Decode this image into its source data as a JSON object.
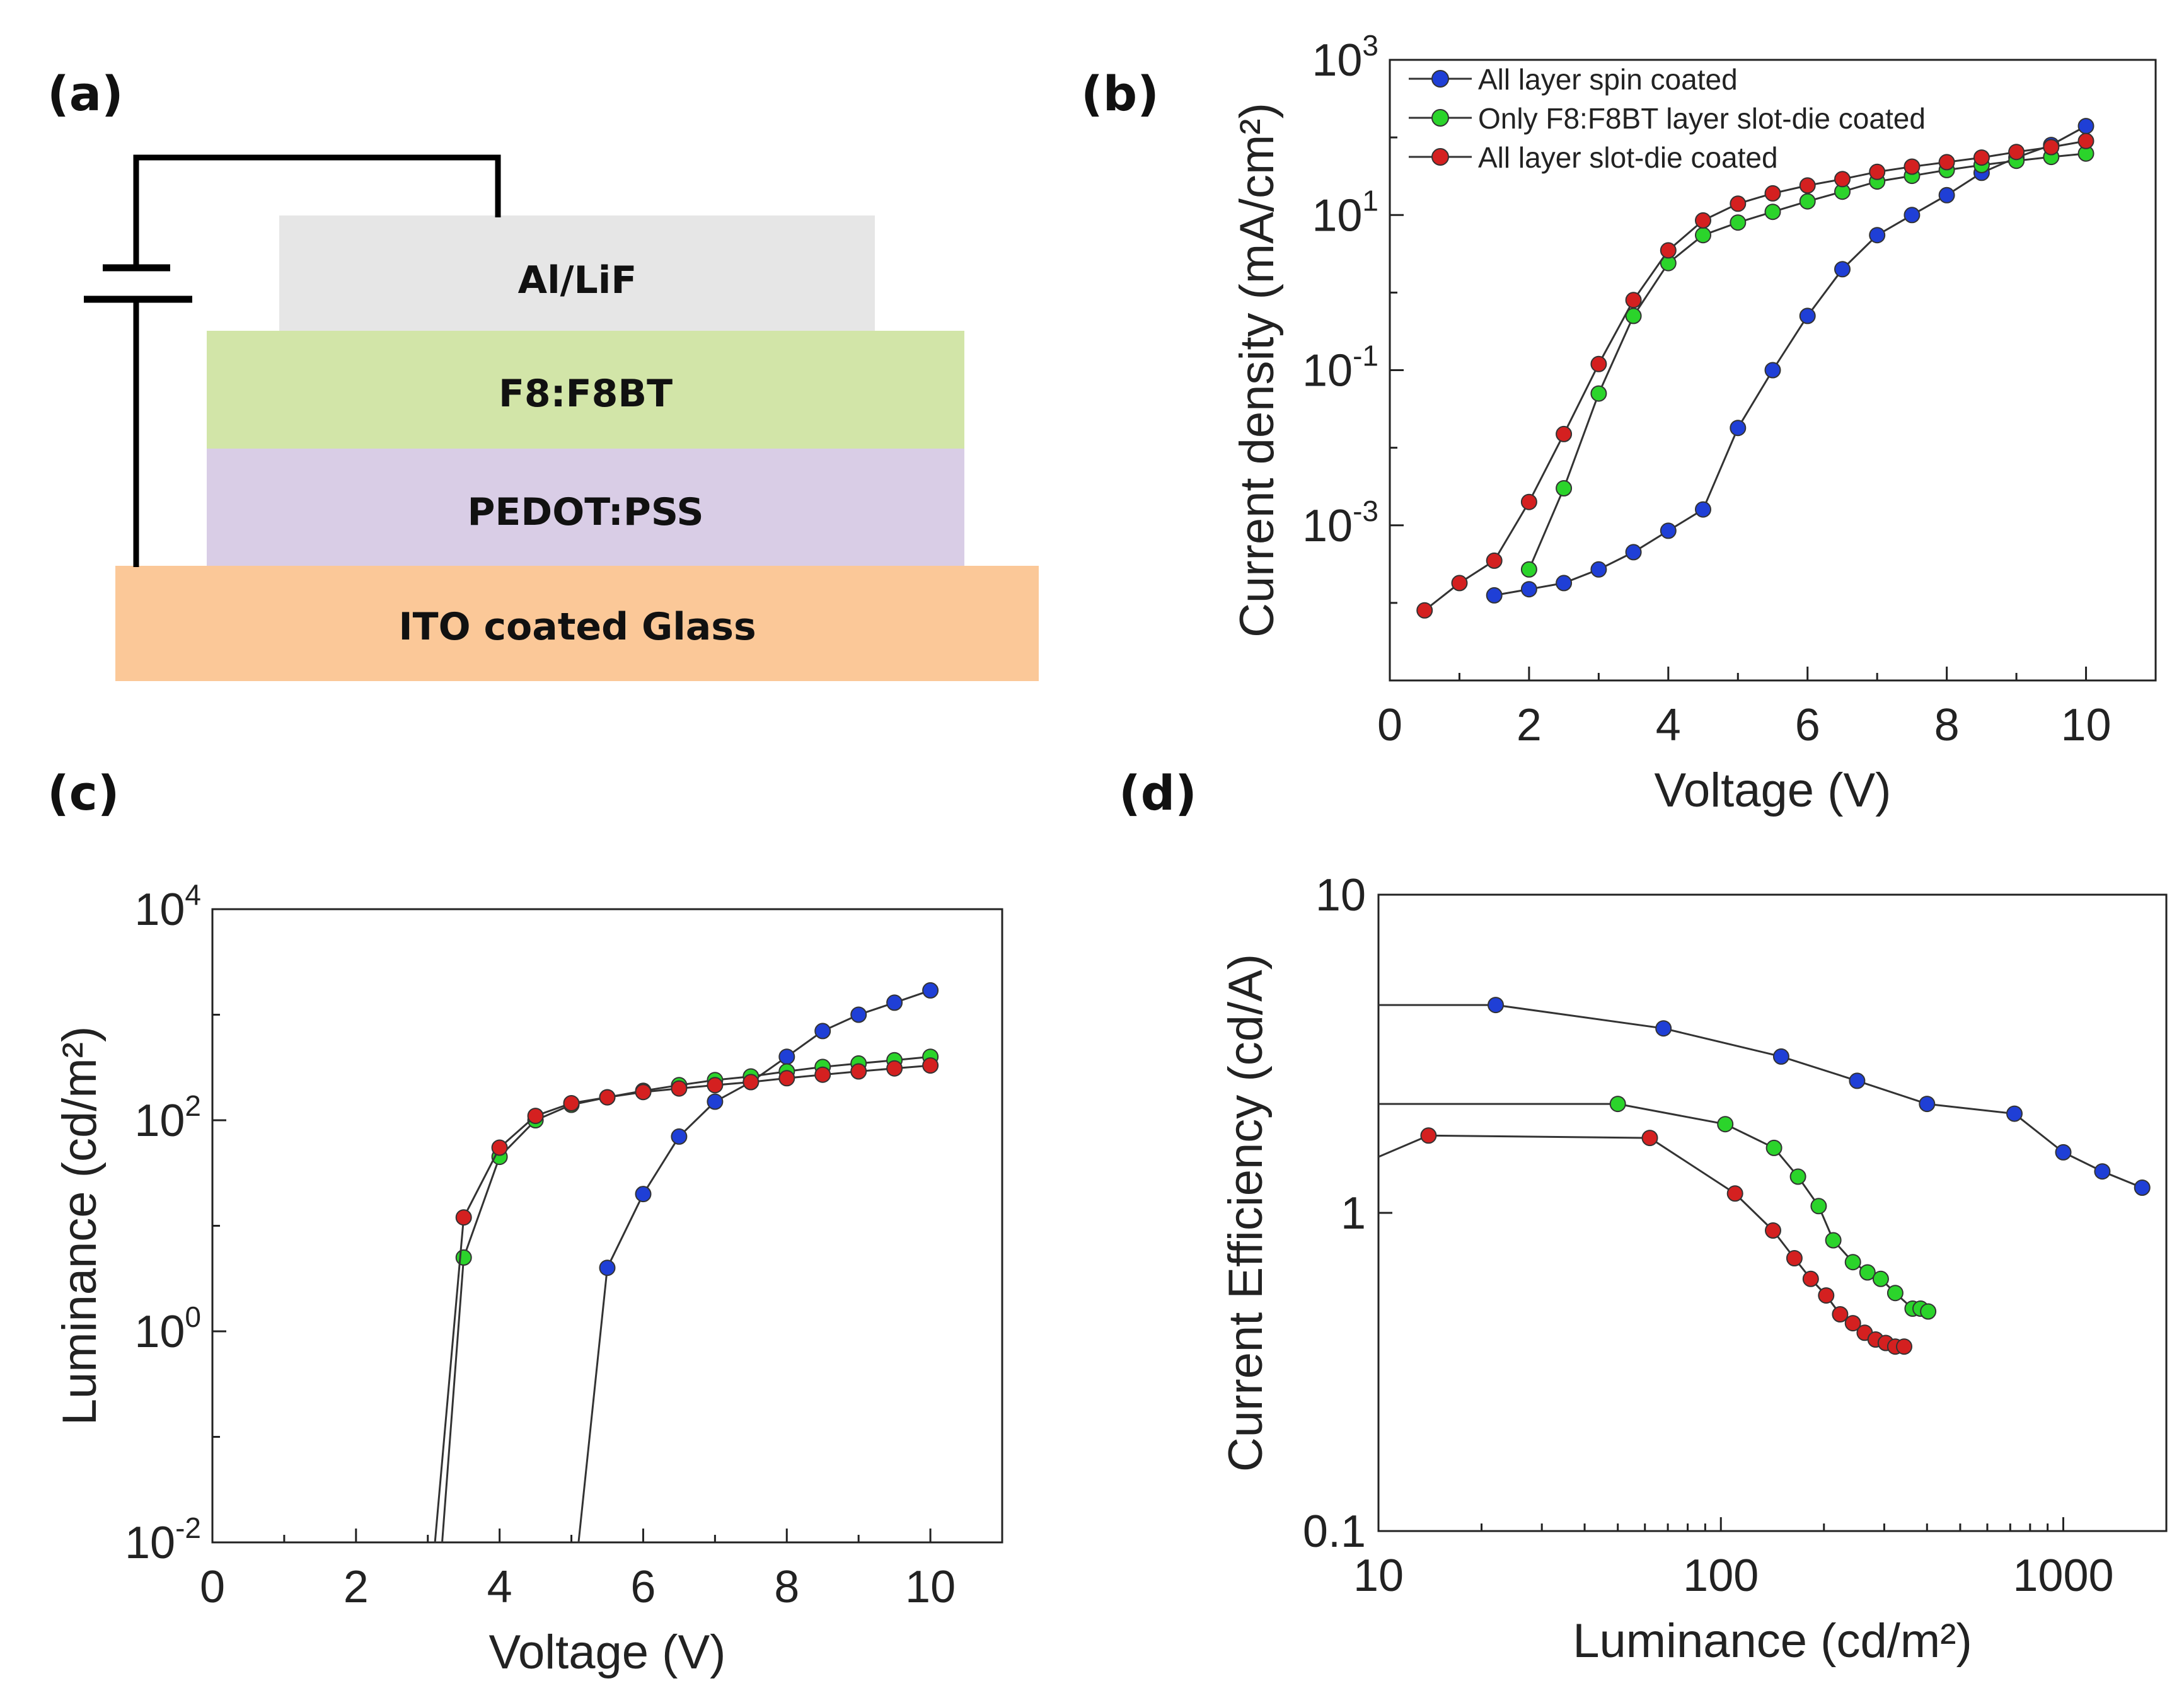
{
  "panels": {
    "a": {
      "label": "(a)",
      "layers": [
        {
          "name": "Al/LiF",
          "color": "#e6e6e6"
        },
        {
          "name": "F8:F8BT",
          "color": "#d2e5a8"
        },
        {
          "name": "PEDOT:PSS",
          "color": "#d9cde6"
        },
        {
          "name": "ITO coated Glass",
          "color": "#fbc898"
        }
      ]
    },
    "b": {
      "label": "(b)"
    },
    "c": {
      "label": "(c)"
    },
    "d": {
      "label": "(d)"
    }
  },
  "legend": [
    {
      "name": "All layer spin coated",
      "color": "#1f3fd6"
    },
    {
      "name": "Only F8:F8BT layer slot-die coated",
      "color": "#2bd42b"
    },
    {
      "name": "All layer slot-die coated",
      "color": "#d42020"
    }
  ],
  "chart_data": [
    {
      "id": "b",
      "type": "line",
      "xscale": "linear",
      "yscale": "log",
      "xlabel": "Voltage (V)",
      "ylabel": "Current density (mA/cm²)",
      "xlim": [
        0,
        11
      ],
      "ylim": [
        1e-05,
        1000
      ],
      "xticks": [
        0,
        2,
        4,
        6,
        8,
        10
      ],
      "yticks": [
        {
          "value": 0.001,
          "base": "10",
          "exp": "-3"
        },
        {
          "value": 0.1,
          "base": "10",
          "exp": "-1"
        },
        {
          "value": 10,
          "base": "10",
          "exp": "1"
        },
        {
          "value": 1000,
          "base": "10",
          "exp": "3"
        }
      ],
      "series": [
        {
          "name": "All layer spin coated",
          "color": "#1f3fd6",
          "x": [
            1.5,
            2,
            2.5,
            3,
            3.5,
            4,
            4.5,
            5,
            5.5,
            6,
            6.5,
            7,
            7.5,
            8,
            8.5,
            9,
            9.5,
            10
          ],
          "y": [
            0.000125,
            0.00015,
            0.00018,
            0.00027,
            0.00045,
            0.00085,
            0.0016,
            0.018,
            0.1,
            0.5,
            2,
            5.5,
            10,
            18,
            35,
            55,
            80,
            140
          ]
        },
        {
          "name": "Only F8:F8BT layer slot-die coated",
          "color": "#2bd42b",
          "x": [
            2,
            2.5,
            3,
            3.5,
            4,
            4.5,
            5,
            5.5,
            6,
            6.5,
            7,
            7.5,
            8,
            8.5,
            9,
            9.5,
            10
          ],
          "y": [
            0.00027,
            0.003,
            0.05,
            0.5,
            2.4,
            5.5,
            8,
            11,
            15,
            20,
            27,
            32,
            38,
            44,
            50,
            56,
            62
          ]
        },
        {
          "name": "All layer slot-die coated",
          "color": "#d42020",
          "x": [
            0.5,
            1,
            1.5,
            2,
            2.5,
            3,
            3.5,
            4,
            4.5,
            5,
            5.5,
            6,
            6.5,
            7,
            7.5,
            8,
            8.5,
            9,
            9.5,
            10
          ],
          "y": [
            8e-05,
            0.00018,
            0.00035,
            0.002,
            0.015,
            0.12,
            0.8,
            3.5,
            8.5,
            14,
            19,
            24,
            29,
            36,
            42,
            48,
            55,
            65,
            75,
            90
          ]
        }
      ]
    },
    {
      "id": "c",
      "type": "line",
      "xscale": "linear",
      "yscale": "log",
      "xlabel": "Voltage (V)",
      "ylabel": "Luminance (cd/m²)",
      "xlim": [
        0,
        11
      ],
      "ylim": [
        0.01,
        10000
      ],
      "xticks": [
        0,
        2,
        4,
        6,
        8,
        10
      ],
      "yticks": [
        {
          "value": 0.01,
          "base": "10",
          "exp": "-2"
        },
        {
          "value": 1,
          "base": "10",
          "exp": "0"
        },
        {
          "value": 100,
          "base": "10",
          "exp": "2"
        },
        {
          "value": 10000,
          "base": "10",
          "exp": "4"
        }
      ],
      "series": [
        {
          "name": "All layer spin coated",
          "color": "#1f3fd6",
          "line_start": [
            5.1,
            0.01
          ],
          "x": [
            5.5,
            6,
            6.5,
            7,
            7.5,
            8,
            8.5,
            9,
            9.5,
            10
          ],
          "y": [
            4,
            20,
            70,
            150,
            230,
            400,
            700,
            1000,
            1300,
            1700
          ]
        },
        {
          "name": "Only F8:F8BT layer slot-die coated",
          "color": "#2bd42b",
          "line_start": [
            3.2,
            0.01
          ],
          "x": [
            3.5,
            4,
            4.5,
            5,
            5.5,
            6,
            6.5,
            7,
            7.5,
            8,
            8.5,
            9,
            9.5,
            10
          ],
          "y": [
            5,
            45,
            100,
            140,
            165,
            190,
            215,
            240,
            260,
            290,
            320,
            345,
            370,
            400
          ]
        },
        {
          "name": "All layer slot-die coated",
          "color": "#d42020",
          "line_start": [
            3.1,
            0.01
          ],
          "x": [
            3.5,
            4,
            4.5,
            5,
            5.5,
            6,
            6.5,
            7,
            7.5,
            8,
            8.5,
            9,
            9.5,
            10
          ],
          "y": [
            12,
            55,
            110,
            145,
            165,
            185,
            200,
            215,
            230,
            250,
            270,
            290,
            310,
            330
          ]
        }
      ]
    },
    {
      "id": "d",
      "type": "line",
      "xscale": "log",
      "yscale": "log",
      "xlabel": "Luminance (cd/m²)",
      "ylabel": "Current Efficiency (cd/A)",
      "xlim": [
        10,
        2000
      ],
      "ylim": [
        0.1,
        10
      ],
      "xticks": [
        {
          "value": 10,
          "label": "10"
        },
        {
          "value": 100,
          "label": "100"
        },
        {
          "value": 1000,
          "label": "1000"
        }
      ],
      "yticks": [
        {
          "value": 0.1,
          "label": "0.1"
        },
        {
          "value": 1,
          "label": "1"
        },
        {
          "value": 10,
          "label": "10"
        }
      ],
      "series": [
        {
          "name": "All layer spin coated",
          "color": "#1f3fd6",
          "line_start": [
            10,
            4.5
          ],
          "x": [
            22,
            68,
            150,
            250,
            400,
            720,
            1000,
            1300,
            1700
          ],
          "y": [
            4.5,
            3.8,
            3.1,
            2.6,
            2.2,
            2.05,
            1.55,
            1.35,
            1.2
          ]
        },
        {
          "name": "Only F8:F8BT layer slot-die coated",
          "color": "#2bd42b",
          "line_start": [
            10,
            2.2
          ],
          "x": [
            50,
            103,
            143,
            168,
            193,
            213,
            243,
            268,
            293,
            323,
            363,
            383,
            403
          ],
          "y": [
            2.2,
            1.9,
            1.6,
            1.3,
            1.05,
            0.82,
            0.7,
            0.65,
            0.62,
            0.56,
            0.5,
            0.5,
            0.49
          ]
        },
        {
          "name": "All layer slot-die coated",
          "color": "#d42020",
          "line_start": [
            10,
            1.5
          ],
          "x": [
            14,
            62,
            110,
            142,
            164,
            183,
            203,
            223,
            243,
            263,
            283,
            303,
            323,
            343
          ],
          "y": [
            1.75,
            1.72,
            1.15,
            0.88,
            0.72,
            0.62,
            0.55,
            0.48,
            0.45,
            0.42,
            0.4,
            0.39,
            0.38,
            0.38
          ]
        }
      ]
    }
  ]
}
